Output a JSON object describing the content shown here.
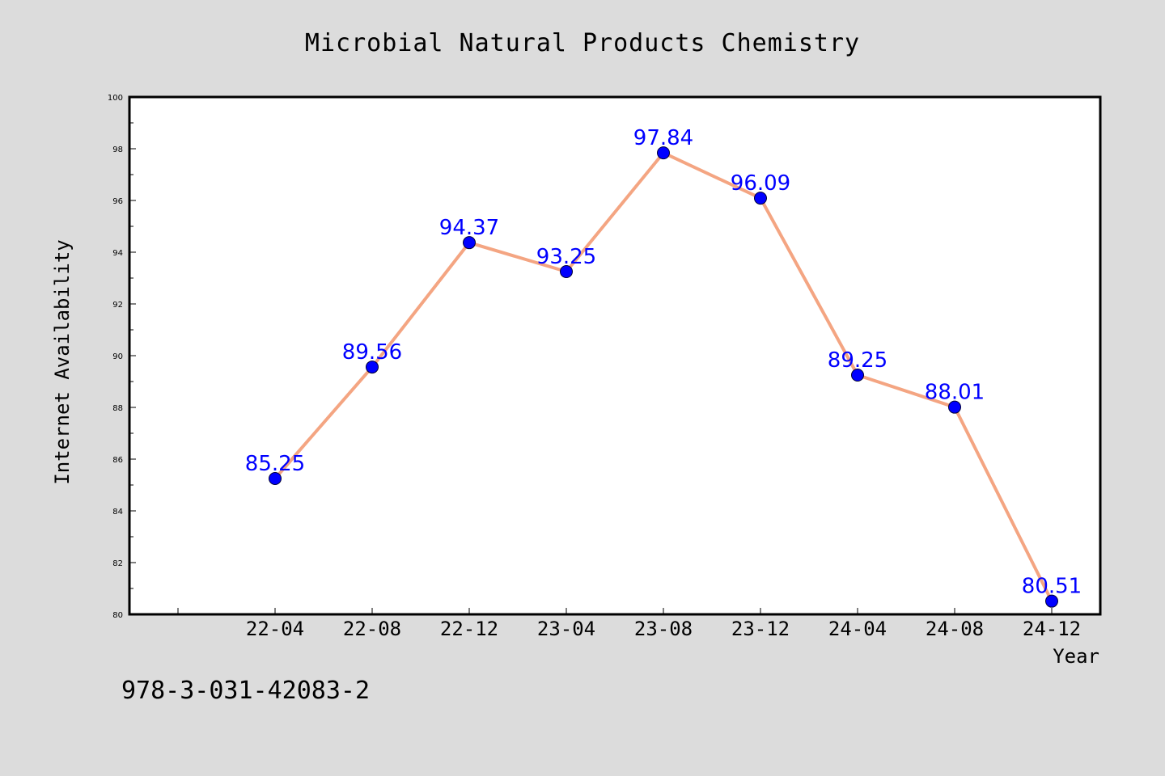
{
  "page": {
    "footer_code": "978-3-031-42083-2",
    "background_color": "#dcdcdc",
    "plot_background_color": "#ffffff"
  },
  "chart_data": {
    "type": "line",
    "title": "Microbial Natural Products Chemistry",
    "xlabel": "Year",
    "ylabel": "Internet Availability",
    "categories": [
      "22-04",
      "22-08",
      "22-12",
      "23-04",
      "23-08",
      "23-12",
      "24-04",
      "24-08",
      "24-12"
    ],
    "series": [
      {
        "values": [
          85.25,
          89.56,
          94.37,
          93.25,
          97.84,
          96.09,
          89.25,
          88.01,
          80.51
        ],
        "data_labels": [
          "85.25",
          "89.56",
          "94.37",
          "93.25",
          "97.84",
          "96.09",
          "89.25",
          "88.01",
          "80.51"
        ],
        "line_color": "#f4a582",
        "marker_color": "#0000ff",
        "label_color": "#0000ff"
      }
    ],
    "ylim": [
      80,
      100
    ],
    "yticks": [
      "80",
      "82",
      "84",
      "86",
      "88",
      "90",
      "92",
      "94",
      "96",
      "98",
      "100"
    ],
    "grid": false,
    "legend": "none"
  }
}
